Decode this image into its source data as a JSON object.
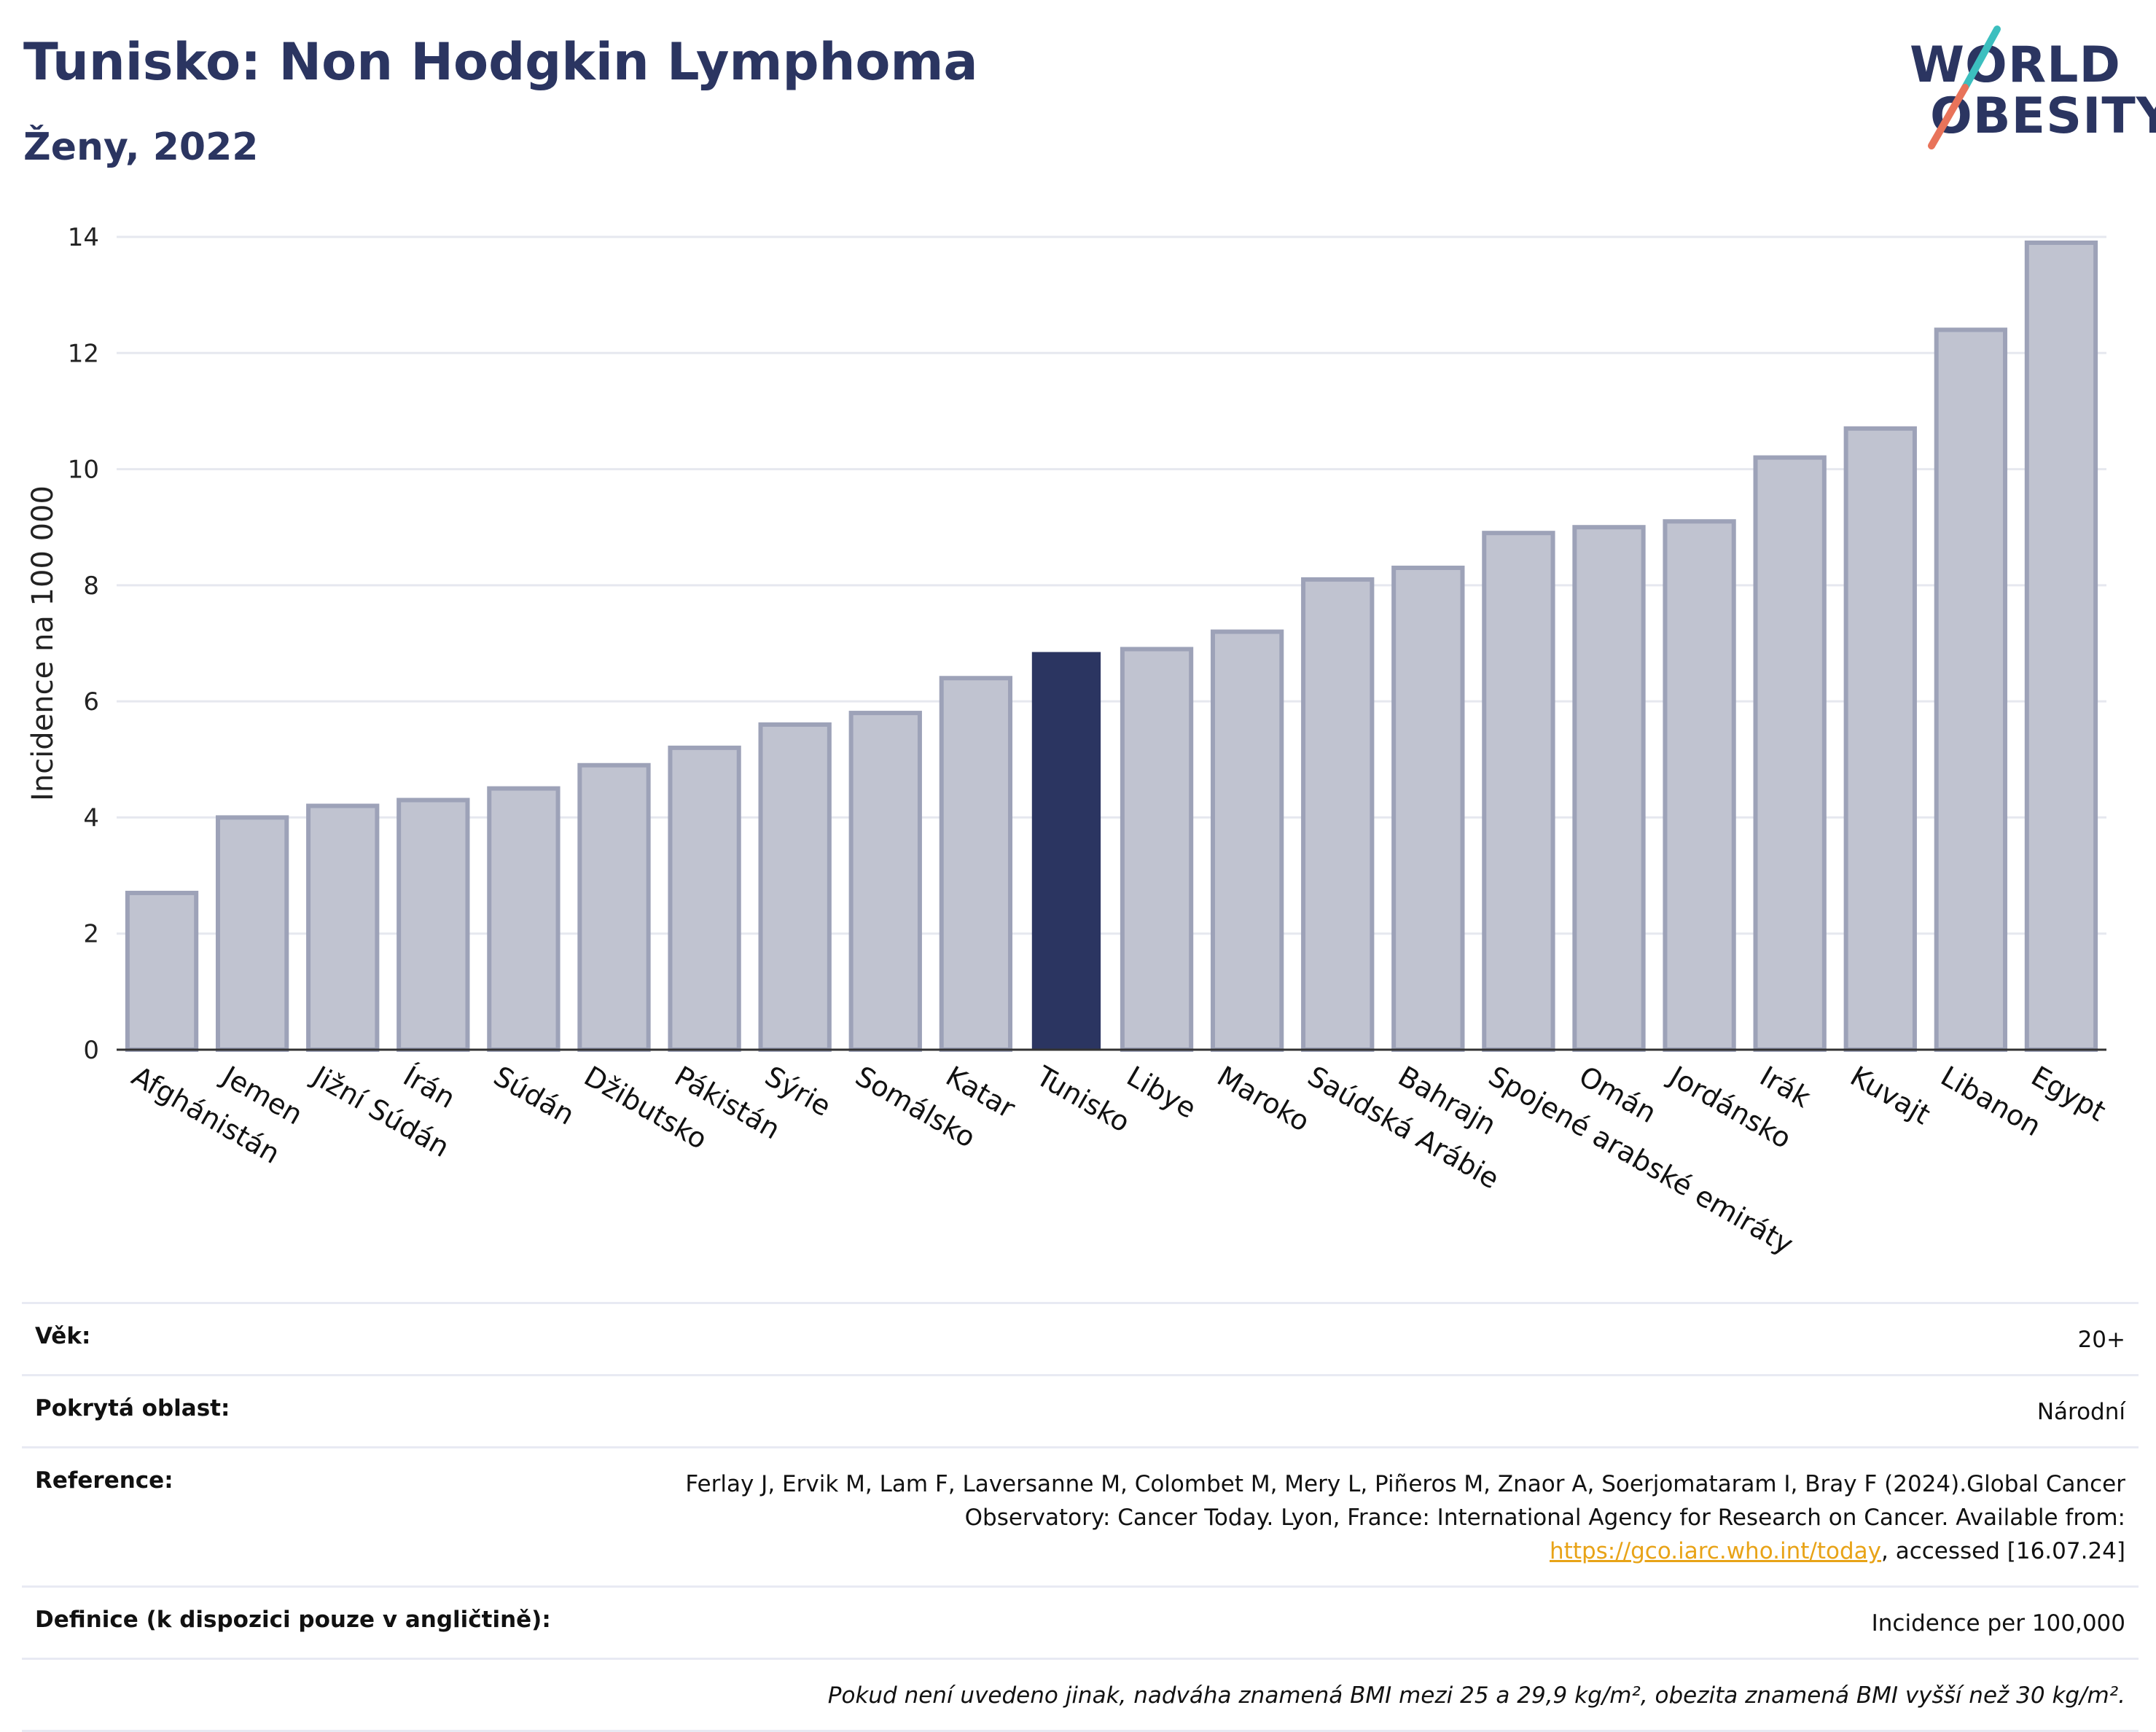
{
  "header": {
    "title": "Tunisko: Non Hodgkin Lymphoma",
    "subtitle": "Ženy, 2022"
  },
  "logo": {
    "line1": "WORLD",
    "line2": "OBESITY"
  },
  "colors": {
    "highlight": "#2b3561",
    "bar_fill": "#c0c3d0",
    "bar_stroke": "#9da2b8",
    "slash_teal": "#3cbfbf",
    "slash_red": "#e8735a"
  },
  "chart_data": {
    "type": "bar",
    "ylabel": "Incidence na 100 000",
    "ylim": [
      0,
      14
    ],
    "yticks": [
      0,
      2,
      4,
      6,
      8,
      10,
      12,
      14
    ],
    "grid": true,
    "highlight": "Tunisko",
    "categories": [
      "Afghánistán",
      "Jemen",
      "Jižní Súdán",
      "Írán",
      "Súdán",
      "Džibutsko",
      "Pákistán",
      "Sýrie",
      "Somálsko",
      "Katar",
      "Tunisko",
      "Libye",
      "Maroko",
      "Saúdská Arábie",
      "Bahrajn",
      "Spojené arabské emiráty",
      "Omán",
      "Jordánsko",
      "Irák",
      "Kuvajt",
      "Libanon",
      "Egypt"
    ],
    "values": [
      2.7,
      4.0,
      4.2,
      4.3,
      4.5,
      4.9,
      5.2,
      5.6,
      5.8,
      6.4,
      6.85,
      6.9,
      7.2,
      8.1,
      8.3,
      8.9,
      9.0,
      9.1,
      10.2,
      10.7,
      12.4,
      13.9
    ]
  },
  "meta": {
    "age_label": "Věk:",
    "age_value": "20+",
    "area_label": "Pokrytá oblast:",
    "area_value": "Národní",
    "ref_label": "Reference:",
    "ref_text1": "Ferlay J, Ervik M, Lam F, Laversanne M, Colombet M, Mery L, Piñeros M, Znaor A, Soerjomataram I, Bray F (2024).Global Cancer Observatory: Cancer Today. Lyon, France: International Agency for Research on Cancer. Available from: ",
    "ref_link": "https://gco.iarc.who.int/today",
    "ref_text2": ", accessed [16.07.24]",
    "def_label": "Definice (k dispozici pouze v angličtině):",
    "def_value": "Incidence per 100,000",
    "note": "Pokud není uvedeno jinak, nadváha znamená BMI mezi 25 a 29,9 kg/m², obezita znamená BMI vyšší než 30 kg/m²."
  }
}
